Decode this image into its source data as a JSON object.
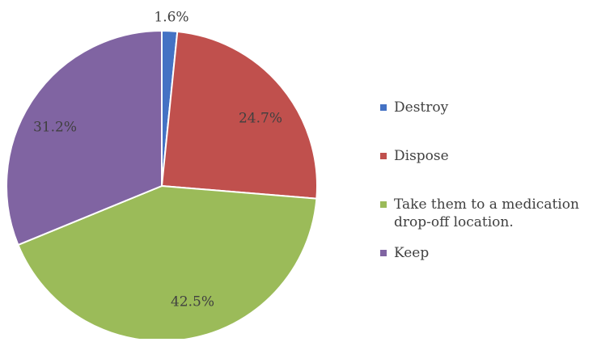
{
  "chart_data": {
    "type": "pie",
    "title": "",
    "start_angle_deg": 0,
    "direction": "clockwise",
    "legend_position": "right",
    "slices": [
      {
        "label": "Destroy",
        "value": 1.6,
        "value_label": "1.6%",
        "color": "#4472C4"
      },
      {
        "label": "Dispose",
        "value": 24.7,
        "value_label": "24.7%",
        "color": "#C0504D"
      },
      {
        "label": "Take them to a medication drop-off location.",
        "legend_lines": [
          "Take them to a medication",
          "drop-off location."
        ],
        "value": 42.5,
        "value_label": "42.5%",
        "color": "#9BBB59"
      },
      {
        "label": "Keep",
        "value": 31.2,
        "value_label": "31.2%",
        "color": "#8064A2"
      }
    ]
  }
}
